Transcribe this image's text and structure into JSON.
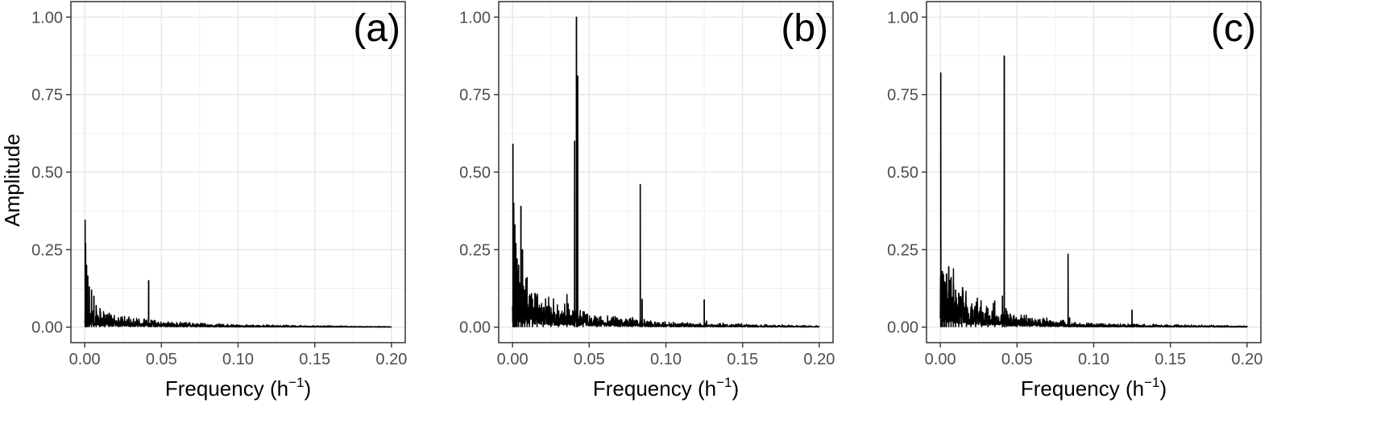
{
  "chart_data": [
    {
      "type": "line",
      "panel_label": "(a)",
      "xlabel": "Frequency (h",
      "xlabel_sup": "−1",
      "xlabel_close": ")",
      "ylabel": "Amplitude",
      "xlim": [
        0,
        0.2
      ],
      "ylim": [
        0,
        1
      ],
      "x_ticks": [
        0.0,
        0.05,
        0.1,
        0.15,
        0.2
      ],
      "x_tick_labels": [
        "0.00",
        "0.05",
        "0.10",
        "0.15",
        "0.20"
      ],
      "y_ticks": [
        0.0,
        0.25,
        0.5,
        0.75,
        1.0
      ],
      "y_tick_labels": [
        "0.00",
        "0.25",
        "0.50",
        "0.75",
        "1.00"
      ],
      "grid": true,
      "line_color": "#000000",
      "peaks": [
        {
          "x": 0.0003,
          "y": 0.345
        },
        {
          "x": 0.0006,
          "y": 0.27
        },
        {
          "x": 0.0012,
          "y": 0.2
        },
        {
          "x": 0.002,
          "y": 0.165
        },
        {
          "x": 0.003,
          "y": 0.13
        },
        {
          "x": 0.0045,
          "y": 0.12
        },
        {
          "x": 0.006,
          "y": 0.1
        },
        {
          "x": 0.0075,
          "y": 0.07
        },
        {
          "x": 0.01,
          "y": 0.06
        },
        {
          "x": 0.013,
          "y": 0.04
        },
        {
          "x": 0.016,
          "y": 0.045
        },
        {
          "x": 0.022,
          "y": 0.03
        },
        {
          "x": 0.03,
          "y": 0.025
        },
        {
          "x": 0.0417,
          "y": 0.15
        },
        {
          "x": 0.046,
          "y": 0.02
        },
        {
          "x": 0.06,
          "y": 0.015
        }
      ],
      "noise_floor": [
        {
          "x": 0.0,
          "y": 0.035
        },
        {
          "x": 0.02,
          "y": 0.018
        },
        {
          "x": 0.05,
          "y": 0.01
        },
        {
          "x": 0.1,
          "y": 0.004
        },
        {
          "x": 0.2,
          "y": 0.001
        }
      ]
    },
    {
      "type": "line",
      "panel_label": "(b)",
      "xlabel": "Frequency (h",
      "xlabel_sup": "−1",
      "xlabel_close": ")",
      "ylabel": "",
      "xlim": [
        0,
        0.2
      ],
      "ylim": [
        0,
        1
      ],
      "x_ticks": [
        0.0,
        0.05,
        0.1,
        0.15,
        0.2
      ],
      "x_tick_labels": [
        "0.00",
        "0.05",
        "0.10",
        "0.15",
        "0.20"
      ],
      "y_ticks": [
        0.0,
        0.25,
        0.5,
        0.75,
        1.0
      ],
      "y_tick_labels": [
        "0.00",
        "0.25",
        "0.50",
        "0.75",
        "1.00"
      ],
      "grid": true,
      "line_color": "#000000",
      "peaks": [
        {
          "x": 0.0003,
          "y": 0.59
        },
        {
          "x": 0.0008,
          "y": 0.4
        },
        {
          "x": 0.0015,
          "y": 0.33
        },
        {
          "x": 0.0022,
          "y": 0.27
        },
        {
          "x": 0.003,
          "y": 0.22
        },
        {
          "x": 0.004,
          "y": 0.2
        },
        {
          "x": 0.0055,
          "y": 0.39
        },
        {
          "x": 0.0065,
          "y": 0.25
        },
        {
          "x": 0.008,
          "y": 0.12
        },
        {
          "x": 0.0095,
          "y": 0.16
        },
        {
          "x": 0.011,
          "y": 0.1
        },
        {
          "x": 0.013,
          "y": 0.09
        },
        {
          "x": 0.016,
          "y": 0.06
        },
        {
          "x": 0.02,
          "y": 0.05
        },
        {
          "x": 0.025,
          "y": 0.04
        },
        {
          "x": 0.03,
          "y": 0.05
        },
        {
          "x": 0.0355,
          "y": 0.105
        },
        {
          "x": 0.0405,
          "y": 0.6
        },
        {
          "x": 0.0417,
          "y": 1.0
        },
        {
          "x": 0.0425,
          "y": 0.81
        },
        {
          "x": 0.046,
          "y": 0.05
        },
        {
          "x": 0.055,
          "y": 0.03
        },
        {
          "x": 0.07,
          "y": 0.02
        },
        {
          "x": 0.078,
          "y": 0.025
        },
        {
          "x": 0.0833,
          "y": 0.46
        },
        {
          "x": 0.0845,
          "y": 0.09
        },
        {
          "x": 0.09,
          "y": 0.02
        },
        {
          "x": 0.125,
          "y": 0.088
        },
        {
          "x": 0.1265,
          "y": 0.02
        }
      ],
      "noise_floor": [
        {
          "x": 0.0,
          "y": 0.09
        },
        {
          "x": 0.02,
          "y": 0.05
        },
        {
          "x": 0.05,
          "y": 0.025
        },
        {
          "x": 0.1,
          "y": 0.008
        },
        {
          "x": 0.2,
          "y": 0.002
        }
      ]
    },
    {
      "type": "line",
      "panel_label": "(c)",
      "xlabel": "Frequency (h",
      "xlabel_sup": "−1",
      "xlabel_close": ")",
      "ylabel": "",
      "xlim": [
        0,
        0.2
      ],
      "ylim": [
        0,
        1
      ],
      "x_ticks": [
        0.0,
        0.05,
        0.1,
        0.15,
        0.2
      ],
      "x_tick_labels": [
        "0.00",
        "0.05",
        "0.10",
        "0.15",
        "0.20"
      ],
      "y_ticks": [
        0.0,
        0.25,
        0.5,
        0.75,
        1.0
      ],
      "y_tick_labels": [
        "0.00",
        "0.25",
        "0.50",
        "0.75",
        "1.00"
      ],
      "grid": true,
      "line_color": "#000000",
      "peaks": [
        {
          "x": 0.0003,
          "y": 0.82
        },
        {
          "x": 0.001,
          "y": 0.18
        },
        {
          "x": 0.002,
          "y": 0.17
        },
        {
          "x": 0.003,
          "y": 0.14
        },
        {
          "x": 0.004,
          "y": 0.17
        },
        {
          "x": 0.0055,
          "y": 0.195
        },
        {
          "x": 0.007,
          "y": 0.16
        },
        {
          "x": 0.0085,
          "y": 0.14
        },
        {
          "x": 0.01,
          "y": 0.12
        },
        {
          "x": 0.012,
          "y": 0.11
        },
        {
          "x": 0.014,
          "y": 0.09
        },
        {
          "x": 0.017,
          "y": 0.07
        },
        {
          "x": 0.02,
          "y": 0.065
        },
        {
          "x": 0.023,
          "y": 0.06
        },
        {
          "x": 0.027,
          "y": 0.05
        },
        {
          "x": 0.031,
          "y": 0.06
        },
        {
          "x": 0.0355,
          "y": 0.085
        },
        {
          "x": 0.0405,
          "y": 0.1
        },
        {
          "x": 0.0417,
          "y": 0.875
        },
        {
          "x": 0.0428,
          "y": 0.06
        },
        {
          "x": 0.05,
          "y": 0.025
        },
        {
          "x": 0.065,
          "y": 0.015
        },
        {
          "x": 0.0833,
          "y": 0.235
        },
        {
          "x": 0.0843,
          "y": 0.03
        },
        {
          "x": 0.125,
          "y": 0.055
        },
        {
          "x": 0.1262,
          "y": 0.01
        }
      ],
      "noise_floor": [
        {
          "x": 0.0,
          "y": 0.11
        },
        {
          "x": 0.02,
          "y": 0.05
        },
        {
          "x": 0.05,
          "y": 0.02
        },
        {
          "x": 0.1,
          "y": 0.006
        },
        {
          "x": 0.2,
          "y": 0.002
        }
      ]
    }
  ]
}
